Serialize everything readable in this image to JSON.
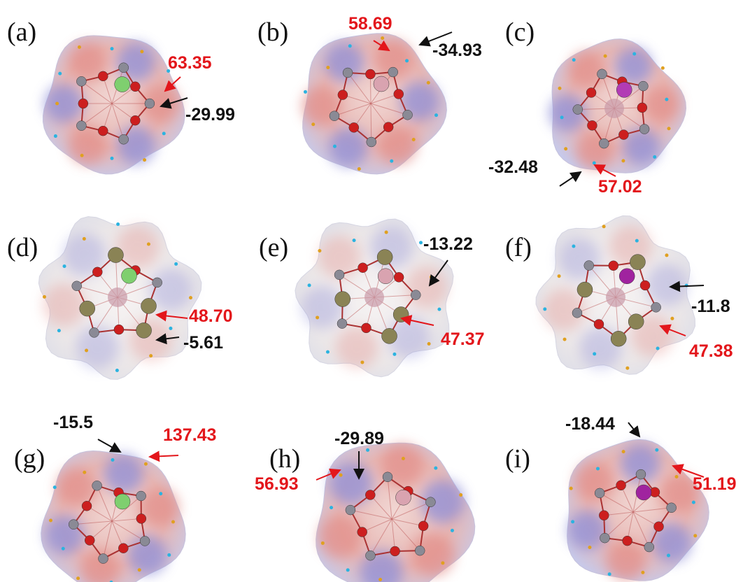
{
  "panels": [
    {
      "label": "(a)",
      "positive": "63.35",
      "negative": "-29.99"
    },
    {
      "label": "(b)",
      "positive": "58.69",
      "negative": "-34.93"
    },
    {
      "label": "(c)",
      "positive": "57.02",
      "negative": "-32.48"
    },
    {
      "label": "(d)",
      "positive": "48.70",
      "negative": "-5.61"
    },
    {
      "label": "(e)",
      "positive": "47.37",
      "negative": "-13.22"
    },
    {
      "label": "(f)",
      "positive": "47.38",
      "negative": "-11.8"
    },
    {
      "label": "(g)",
      "positive": "137.43",
      "negative": "-15.5"
    },
    {
      "label": "(h)",
      "positive": "56.93",
      "negative": "-29.89"
    },
    {
      "label": "(i)",
      "positive": "51.19",
      "negative": "-18.44"
    }
  ]
}
